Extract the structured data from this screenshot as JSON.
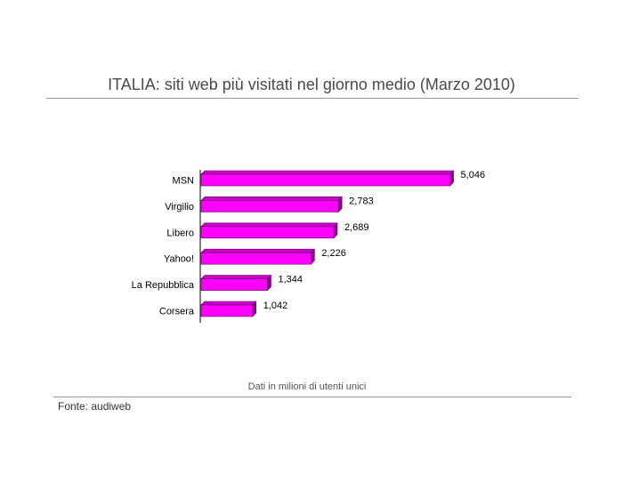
{
  "title": "ITALIA: siti web più visitati nel giorno medio (Marzo 2010)",
  "footnote": "Dati in milioni di utenti unici",
  "source": "Fonte: audiweb",
  "colors": {
    "bar_front": "#ff00ff",
    "bar_top": "#cc00cc",
    "bar_side": "#8a008a",
    "bar_edge": "#5a005a"
  },
  "chart_data": {
    "type": "bar",
    "orientation": "horizontal",
    "categories": [
      "MSN",
      "Virgilio",
      "Libero",
      "Yahoo!",
      "La Repubblica",
      "Corsera"
    ],
    "values": [
      5.046,
      2.783,
      2.689,
      2.226,
      1.344,
      1.042
    ],
    "value_labels": [
      "5,046",
      "2,783",
      "2,689",
      "2,226",
      "1,344",
      "1,042"
    ],
    "xlim": [
      0,
      5.046
    ],
    "grid": false,
    "legend": "none"
  }
}
